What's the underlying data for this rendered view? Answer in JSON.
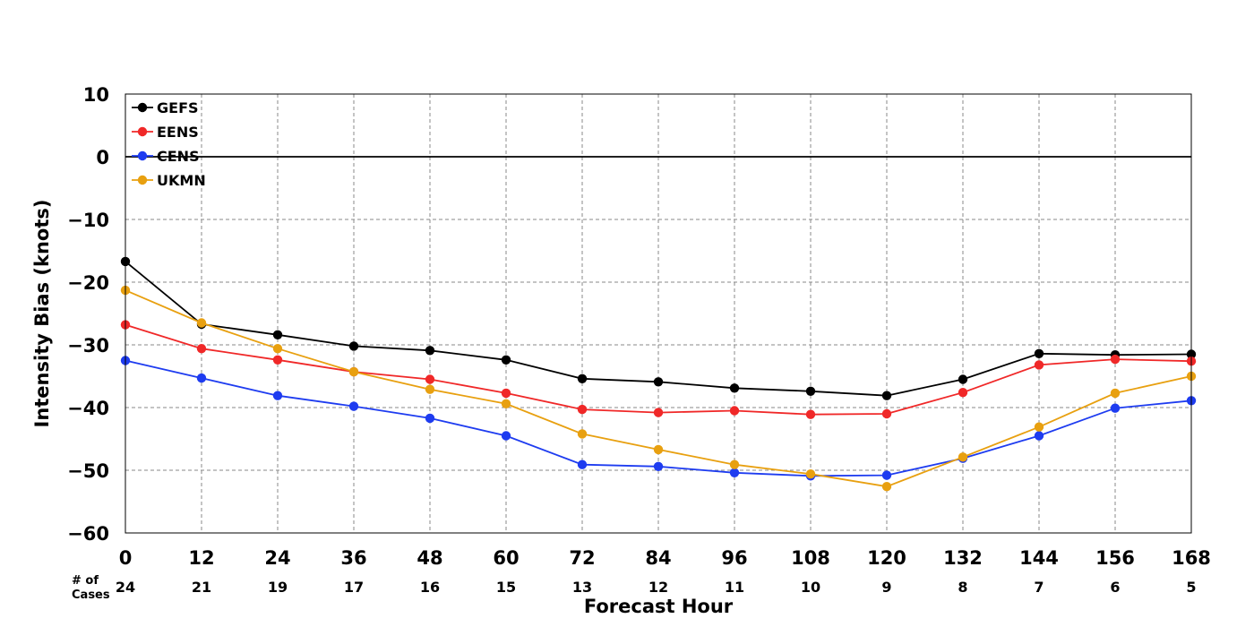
{
  "chart_data": {
    "type": "line",
    "xlabel": "Forecast Hour",
    "ylabel": "Intensity Bias (knots)",
    "x": [
      0,
      12,
      24,
      36,
      48,
      60,
      72,
      84,
      96,
      108,
      120,
      132,
      144,
      156,
      168
    ],
    "xlim": [
      0,
      168
    ],
    "ylim": [
      -60,
      10
    ],
    "yticks": [
      10,
      0,
      -10,
      -20,
      -30,
      -40,
      -50,
      -60
    ],
    "ytick_labels": [
      "10",
      "0",
      "−10",
      "−20",
      "−30",
      "−40",
      "−50",
      "−60"
    ],
    "grid": true,
    "legend_position": "top-left",
    "cases_label": [
      "# of",
      "Cases"
    ],
    "cases": [
      "24",
      "21",
      "19",
      "17",
      "16",
      "15",
      "13",
      "12",
      "11",
      "10",
      "9",
      "8",
      "7",
      "6",
      "5"
    ],
    "reference_line": 0,
    "series": [
      {
        "name": "GEFS",
        "color": "#000000",
        "values": [
          -16.7,
          -26.7,
          -28.4,
          -30.2,
          -30.9,
          -32.4,
          -35.4,
          -35.9,
          -36.9,
          -37.4,
          -38.1,
          -35.5,
          -31.4,
          -31.6,
          -31.5
        ]
      },
      {
        "name": "EENS",
        "color": "#f02828",
        "values": [
          -26.8,
          -30.6,
          -32.4,
          -34.3,
          -35.5,
          -37.7,
          -40.3,
          -40.8,
          -40.5,
          -41.1,
          -41.0,
          -37.6,
          -33.2,
          -32.3,
          -32.6
        ]
      },
      {
        "name": "CENS",
        "color": "#1e3cf0",
        "values": [
          -32.5,
          -35.3,
          -38.1,
          -39.8,
          -41.7,
          -44.5,
          -49.1,
          -49.4,
          -50.4,
          -50.9,
          -50.8,
          -48.1,
          -44.5,
          -40.1,
          -38.9
        ]
      },
      {
        "name": "UKMN",
        "color": "#e8a010",
        "values": [
          -21.3,
          -26.5,
          -30.6,
          -34.3,
          -37.1,
          -39.4,
          -44.2,
          -46.7,
          -49.1,
          -50.6,
          -52.6,
          -47.9,
          -43.1,
          -37.7,
          -35.0
        ]
      }
    ]
  }
}
